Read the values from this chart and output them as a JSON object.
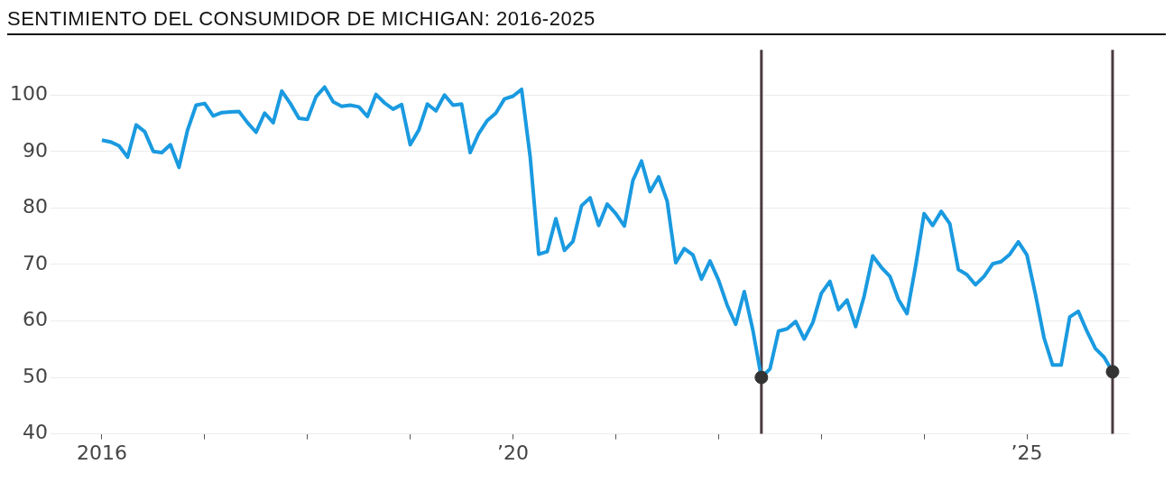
{
  "chart_data": {
    "type": "line",
    "title": "SENTIMIENTO DEL CONSUMIDOR DE MICHIGAN: 2016-2025",
    "x": [
      "2016-01",
      "2016-02",
      "2016-03",
      "2016-04",
      "2016-05",
      "2016-06",
      "2016-07",
      "2016-08",
      "2016-09",
      "2016-10",
      "2016-11",
      "2016-12",
      "2017-01",
      "2017-02",
      "2017-03",
      "2017-04",
      "2017-05",
      "2017-06",
      "2017-07",
      "2017-08",
      "2017-09",
      "2017-10",
      "2017-11",
      "2017-12",
      "2018-01",
      "2018-02",
      "2018-03",
      "2018-04",
      "2018-05",
      "2018-06",
      "2018-07",
      "2018-08",
      "2018-09",
      "2018-10",
      "2018-11",
      "2018-12",
      "2019-01",
      "2019-02",
      "2019-03",
      "2019-04",
      "2019-05",
      "2019-06",
      "2019-07",
      "2019-08",
      "2019-09",
      "2019-10",
      "2019-11",
      "2019-12",
      "2020-01",
      "2020-02",
      "2020-03",
      "2020-04",
      "2020-05",
      "2020-06",
      "2020-07",
      "2020-08",
      "2020-09",
      "2020-10",
      "2020-11",
      "2020-12",
      "2021-01",
      "2021-02",
      "2021-03",
      "2021-04",
      "2021-05",
      "2021-06",
      "2021-07",
      "2021-08",
      "2021-09",
      "2021-10",
      "2021-11",
      "2021-12",
      "2022-01",
      "2022-02",
      "2022-03",
      "2022-04",
      "2022-05",
      "2022-06",
      "2022-07",
      "2022-08",
      "2022-09",
      "2022-10",
      "2022-11",
      "2022-12",
      "2023-01",
      "2023-02",
      "2023-03",
      "2023-04",
      "2023-05",
      "2023-06",
      "2023-07",
      "2023-08",
      "2023-09",
      "2023-10",
      "2023-11",
      "2023-12",
      "2024-01",
      "2024-02",
      "2024-03",
      "2024-04",
      "2024-05",
      "2024-06",
      "2024-07",
      "2024-08",
      "2024-09",
      "2024-10",
      "2024-11",
      "2024-12",
      "2025-01",
      "2025-02",
      "2025-03",
      "2025-04",
      "2025-05",
      "2025-06",
      "2025-07",
      "2025-08",
      "2025-09",
      "2025-10",
      "2025-11"
    ],
    "series": [
      {
        "marker": "none",
        "color": "#1a9ae0",
        "values": [
          92.0,
          91.7,
          91.0,
          89.0,
          94.7,
          93.5,
          90.0,
          89.8,
          91.2,
          87.2,
          93.8,
          98.2,
          98.5,
          96.3,
          96.9,
          97.0,
          97.1,
          95.1,
          93.4,
          96.8,
          95.1,
          100.7,
          98.5,
          95.9,
          95.7,
          99.7,
          101.4,
          98.8,
          98.0,
          98.2,
          97.9,
          96.2,
          100.1,
          98.6,
          97.5,
          98.3,
          91.2,
          93.8,
          98.4,
          97.2,
          100.0,
          98.2,
          98.4,
          89.8,
          93.2,
          95.5,
          96.8,
          99.3,
          99.8,
          101.0,
          89.1,
          71.8,
          72.3,
          78.1,
          72.5,
          74.1,
          80.4,
          81.8,
          76.9,
          80.7,
          79.0,
          76.8,
          84.9,
          88.3,
          82.9,
          85.5,
          81.2,
          70.3,
          72.8,
          71.7,
          67.4,
          70.6,
          67.2,
          62.8,
          59.4,
          65.2,
          58.4,
          50.0,
          51.5,
          58.2,
          58.6,
          59.9,
          56.8,
          59.7,
          64.9,
          67.0,
          62.0,
          63.7,
          59.0,
          64.4,
          71.5,
          69.5,
          67.9,
          63.8,
          61.3,
          69.7,
          79.0,
          76.9,
          79.4,
          77.2,
          69.1,
          68.2,
          66.4,
          67.9,
          70.1,
          70.5,
          71.8,
          74.0,
          71.7,
          64.7,
          57.0,
          52.2,
          52.2,
          60.7,
          61.7,
          58.2,
          55.1,
          53.6,
          51.0
        ]
      },
      {
        "type": "scatter",
        "marker": "circle",
        "color": "#333333",
        "x": [
          "2022-06",
          "2025-11"
        ],
        "values": [
          50.0,
          51.0
        ]
      }
    ],
    "ref_lines": [
      {
        "axis": "x",
        "value": "2022-06",
        "color": "#4a3a40"
      },
      {
        "axis": "x",
        "value": "2025-11",
        "color": "#4a3a40"
      }
    ],
    "xlim": [
      "2015-07",
      "2026-01"
    ],
    "xticks": [
      {
        "value": "2016",
        "label": "2016"
      },
      {
        "value": "2017",
        "label": null
      },
      {
        "value": "2018",
        "label": null
      },
      {
        "value": "2019",
        "label": null
      },
      {
        "value": "2020",
        "label": "’20"
      },
      {
        "value": "2021",
        "label": null
      },
      {
        "value": "2022",
        "label": null
      },
      {
        "value": "2023",
        "label": null
      },
      {
        "value": "2024",
        "label": null
      },
      {
        "value": "2025",
        "label": "’25"
      }
    ],
    "ylim": [
      40,
      108
    ],
    "yticks": [
      40,
      50,
      60,
      70,
      80,
      90,
      100
    ],
    "grid": "y",
    "legend": false
  }
}
